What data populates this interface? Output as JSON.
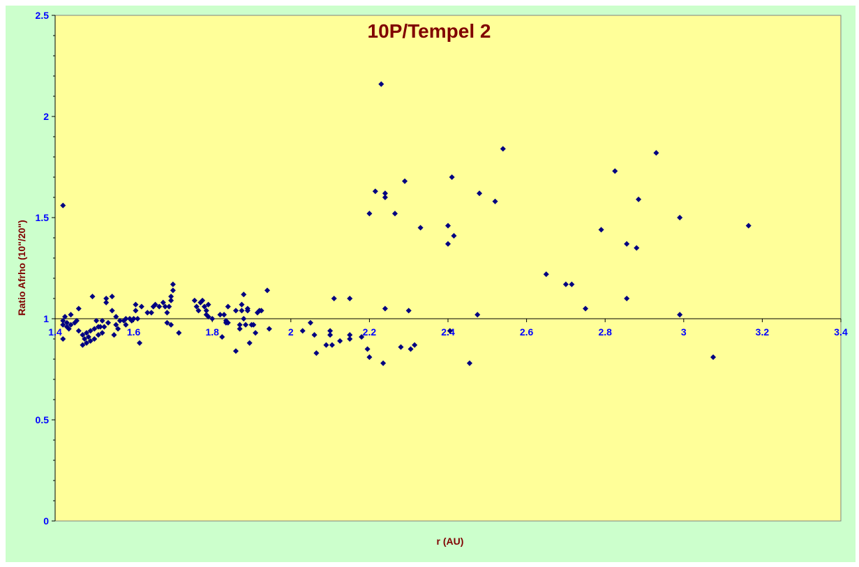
{
  "colors": {
    "outer_background": "#ccffcc",
    "plot_background": "#ffff99",
    "marker": "#000080",
    "tick_text": "#0000ff",
    "title_text": "#800000"
  },
  "chart_data": {
    "type": "scatter",
    "title": "10P/Tempel 2",
    "xlabel": "r (AU)",
    "ylabel": "Ratio Afrho (10\"/20\")",
    "xlim": [
      1.4,
      3.4
    ],
    "ylim": [
      0,
      2.5
    ],
    "x_ticks": [
      "1.4",
      "1.6",
      "1.8",
      "2",
      "2.2",
      "2.4",
      "2.6",
      "2.8",
      "3",
      "3.2",
      "3.4"
    ],
    "y_ticks": [
      "0",
      "0.5",
      "1",
      "1.5",
      "2",
      "2.5"
    ],
    "x_axis_crosses_y_at": 1,
    "grid": false,
    "legend": "none",
    "marker": "diamond",
    "series": [
      {
        "points": [
          [
            1.42,
            1.56
          ],
          [
            1.42,
            0.99
          ],
          [
            1.42,
            0.97
          ],
          [
            1.42,
            0.9
          ],
          [
            1.425,
            1.01
          ],
          [
            1.43,
            0.96
          ],
          [
            1.43,
            0.98
          ],
          [
            1.435,
            0.95
          ],
          [
            1.44,
            1.02
          ],
          [
            1.44,
            0.97
          ],
          [
            1.45,
            0.98
          ],
          [
            1.455,
            0.99
          ],
          [
            1.46,
            0.94
          ],
          [
            1.46,
            1.05
          ],
          [
            1.47,
            0.92
          ],
          [
            1.47,
            0.87
          ],
          [
            1.475,
            0.9
          ],
          [
            1.48,
            0.93
          ],
          [
            1.48,
            0.88
          ],
          [
            1.485,
            0.91
          ],
          [
            1.49,
            0.94
          ],
          [
            1.49,
            0.89
          ],
          [
            1.495,
            1.11
          ],
          [
            1.5,
            0.95
          ],
          [
            1.5,
            0.9
          ],
          [
            1.505,
            0.99
          ],
          [
            1.51,
            0.96
          ],
          [
            1.51,
            0.92
          ],
          [
            1.515,
            0.96
          ],
          [
            1.52,
            0.93
          ],
          [
            1.52,
            0.99
          ],
          [
            1.525,
            0.96
          ],
          [
            1.53,
            1.1
          ],
          [
            1.53,
            1.08
          ],
          [
            1.535,
            0.98
          ],
          [
            1.545,
            1.04
          ],
          [
            1.545,
            1.11
          ],
          [
            1.55,
            0.92
          ],
          [
            1.555,
            1.01
          ],
          [
            1.555,
            0.97
          ],
          [
            1.56,
            0.95
          ],
          [
            1.565,
            0.99
          ],
          [
            1.575,
            0.99
          ],
          [
            1.58,
            0.97
          ],
          [
            1.58,
            1.0
          ],
          [
            1.59,
            1.0
          ],
          [
            1.595,
            0.99
          ],
          [
            1.6,
            1.0
          ],
          [
            1.605,
            1.07
          ],
          [
            1.605,
            1.04
          ],
          [
            1.61,
            1.0
          ],
          [
            1.615,
            0.88
          ],
          [
            1.62,
            1.06
          ],
          [
            1.635,
            1.03
          ],
          [
            1.645,
            1.03
          ],
          [
            1.65,
            1.06
          ],
          [
            1.655,
            1.07
          ],
          [
            1.665,
            1.06
          ],
          [
            1.675,
            1.08
          ],
          [
            1.68,
            1.06
          ],
          [
            1.685,
            1.03
          ],
          [
            1.685,
            0.98
          ],
          [
            1.69,
            1.06
          ],
          [
            1.695,
            0.97
          ],
          [
            1.695,
            1.09
          ],
          [
            1.7,
            1.14
          ],
          [
            1.7,
            1.17
          ],
          [
            1.695,
            1.11
          ],
          [
            1.715,
            0.93
          ],
          [
            1.755,
            1.09
          ],
          [
            1.76,
            1.06
          ],
          [
            1.765,
            1.04
          ],
          [
            1.77,
            1.08
          ],
          [
            1.775,
            1.09
          ],
          [
            1.78,
            1.06
          ],
          [
            1.785,
            1.04
          ],
          [
            1.785,
            1.02
          ],
          [
            1.79,
            1.07
          ],
          [
            1.79,
            1.01
          ],
          [
            1.8,
            1.0
          ],
          [
            1.82,
            1.02
          ],
          [
            1.825,
            0.91
          ],
          [
            1.83,
            1.02
          ],
          [
            1.835,
            0.98
          ],
          [
            1.835,
            0.99
          ],
          [
            1.84,
            0.98
          ],
          [
            1.84,
            1.06
          ],
          [
            1.86,
            1.04
          ],
          [
            1.86,
            0.84
          ],
          [
            1.87,
            0.97
          ],
          [
            1.87,
            0.95
          ],
          [
            1.875,
            1.07
          ],
          [
            1.875,
            1.04
          ],
          [
            1.88,
            1.0
          ],
          [
            1.885,
            0.97
          ],
          [
            1.88,
            1.12
          ],
          [
            1.89,
            1.05
          ],
          [
            1.89,
            1.04
          ],
          [
            1.895,
            0.88
          ],
          [
            1.9,
            0.97
          ],
          [
            1.905,
            0.97
          ],
          [
            1.91,
            0.93
          ],
          [
            1.915,
            1.03
          ],
          [
            1.92,
            1.04
          ],
          [
            1.925,
            1.04
          ],
          [
            1.94,
            1.14
          ],
          [
            1.945,
            0.95
          ],
          [
            2.03,
            0.94
          ],
          [
            2.05,
            0.98
          ],
          [
            2.06,
            0.92
          ],
          [
            2.065,
            0.83
          ],
          [
            2.09,
            0.87
          ],
          [
            2.1,
            0.94
          ],
          [
            2.1,
            0.92
          ],
          [
            2.105,
            0.87
          ],
          [
            2.11,
            1.1
          ],
          [
            2.125,
            0.89
          ],
          [
            2.15,
            0.92
          ],
          [
            2.15,
            0.9
          ],
          [
            2.15,
            1.1
          ],
          [
            2.18,
            0.91
          ],
          [
            2.195,
            0.85
          ],
          [
            2.2,
            0.81
          ],
          [
            2.2,
            1.52
          ],
          [
            2.215,
            1.63
          ],
          [
            2.23,
            2.16
          ],
          [
            2.235,
            0.78
          ],
          [
            2.24,
            1.62
          ],
          [
            2.24,
            1.6
          ],
          [
            2.24,
            1.05
          ],
          [
            2.265,
            1.52
          ],
          [
            2.28,
            0.86
          ],
          [
            2.29,
            1.68
          ],
          [
            2.3,
            1.04
          ],
          [
            2.305,
            0.85
          ],
          [
            2.315,
            0.87
          ],
          [
            2.33,
            1.45
          ],
          [
            2.4,
            1.46
          ],
          [
            2.4,
            1.37
          ],
          [
            2.405,
            0.94
          ],
          [
            2.41,
            1.7
          ],
          [
            2.415,
            1.41
          ],
          [
            2.455,
            0.78
          ],
          [
            2.475,
            1.02
          ],
          [
            2.48,
            1.62
          ],
          [
            2.52,
            1.58
          ],
          [
            2.54,
            1.84
          ],
          [
            2.65,
            1.22
          ],
          [
            2.7,
            1.17
          ],
          [
            2.715,
            1.17
          ],
          [
            2.75,
            1.05
          ],
          [
            2.79,
            1.44
          ],
          [
            2.825,
            1.73
          ],
          [
            2.855,
            1.37
          ],
          [
            2.855,
            1.1
          ],
          [
            2.88,
            1.35
          ],
          [
            2.885,
            1.59
          ],
          [
            2.93,
            1.82
          ],
          [
            2.99,
            1.5
          ],
          [
            2.99,
            1.02
          ],
          [
            3.075,
            0.81
          ],
          [
            3.165,
            1.46
          ]
        ]
      }
    ]
  }
}
